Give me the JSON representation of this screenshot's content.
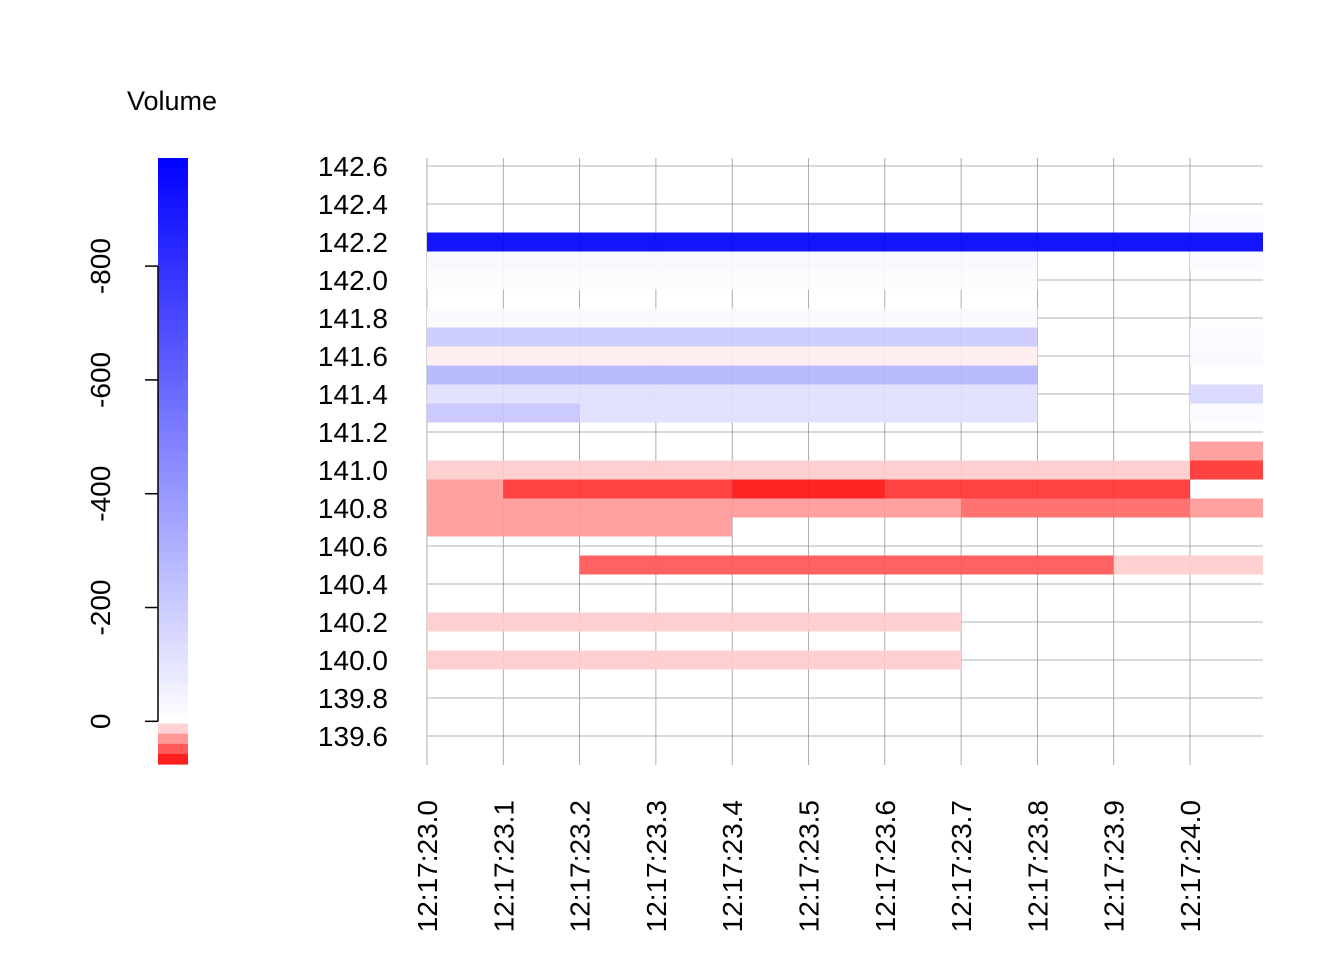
{
  "chart_data": [
    {
      "type": "heatmap",
      "title": "",
      "xlabel": "",
      "ylabel": "",
      "x_ticks": [
        "12:17:23.0",
        "12:17:23.1",
        "12:17:23.2",
        "12:17:23.3",
        "12:17:23.4",
        "12:17:23.5",
        "12:17:23.6",
        "12:17:23.7",
        "12:17:23.8",
        "12:17:23.9",
        "12:17:24.0"
      ],
      "x_range": [
        0.0,
        1.1
      ],
      "y_ticks": [
        "142.6",
        "142.4",
        "142.2",
        "142.0",
        "141.8",
        "141.6",
        "141.4",
        "141.2",
        "141.0",
        "140.8",
        "140.6",
        "140.4",
        "140.2",
        "140.0",
        "139.8",
        "139.6"
      ],
      "y_range": [
        139.6,
        142.6
      ],
      "grid": true,
      "price_step": 0.1,
      "cells": [
        {
          "t0": 0.0,
          "t1": 1.1,
          "price": 142.2,
          "volume": -990
        },
        {
          "t0": 0.0,
          "t1": 0.8,
          "price": 142.1,
          "volume": -30
        },
        {
          "t0": 0.0,
          "t1": 0.8,
          "price": 142.0,
          "volume": -10
        },
        {
          "t0": 1.0,
          "t1": 1.1,
          "price": 142.3,
          "volume": -20
        },
        {
          "t0": 1.0,
          "t1": 1.1,
          "price": 142.1,
          "volume": -20
        },
        {
          "t0": 0.0,
          "t1": 0.8,
          "price": 141.8,
          "volume": -20
        },
        {
          "t0": 0.0,
          "t1": 0.8,
          "price": 141.7,
          "volume": -200
        },
        {
          "t0": 0.0,
          "t1": 0.8,
          "price": 141.6,
          "volume": 5
        },
        {
          "t0": 1.0,
          "t1": 1.1,
          "price": 141.7,
          "volume": -20
        },
        {
          "t0": 1.0,
          "t1": 1.1,
          "price": 141.6,
          "volume": -20
        },
        {
          "t0": 0.0,
          "t1": 0.8,
          "price": 141.5,
          "volume": -290
        },
        {
          "t0": 0.0,
          "t1": 0.8,
          "price": 141.4,
          "volume": -120
        },
        {
          "t0": 0.0,
          "t1": 0.2,
          "price": 141.3,
          "volume": -220
        },
        {
          "t0": 0.2,
          "t1": 0.8,
          "price": 141.3,
          "volume": -120
        },
        {
          "t0": 1.0,
          "t1": 1.1,
          "price": 141.4,
          "volume": -150
        },
        {
          "t0": 1.0,
          "t1": 1.1,
          "price": 141.3,
          "volume": -20
        },
        {
          "t0": 1.0,
          "t1": 1.1,
          "price": 141.1,
          "volume": 30
        },
        {
          "t0": 0.0,
          "t1": 1.0,
          "price": 141.0,
          "volume": 15
        },
        {
          "t0": 1.0,
          "t1": 1.1,
          "price": 141.0,
          "volume": 60
        },
        {
          "t0": 0.0,
          "t1": 0.1,
          "price": 140.9,
          "volume": 30
        },
        {
          "t0": 0.1,
          "t1": 0.4,
          "price": 140.9,
          "volume": 60
        },
        {
          "t0": 0.4,
          "t1": 0.6,
          "price": 140.9,
          "volume": 70
        },
        {
          "t0": 0.6,
          "t1": 1.0,
          "price": 140.9,
          "volume": 60
        },
        {
          "t0": 0.0,
          "t1": 0.4,
          "price": 140.8,
          "volume": 30
        },
        {
          "t0": 0.4,
          "t1": 0.7,
          "price": 140.8,
          "volume": 30
        },
        {
          "t0": 0.7,
          "t1": 1.0,
          "price": 140.8,
          "volume": 45
        },
        {
          "t0": 1.0,
          "t1": 1.1,
          "price": 140.8,
          "volume": 30
        },
        {
          "t0": 0.0,
          "t1": 0.4,
          "price": 140.7,
          "volume": 30
        },
        {
          "t0": 0.2,
          "t1": 0.9,
          "price": 140.5,
          "volume": 50
        },
        {
          "t0": 0.9,
          "t1": 1.1,
          "price": 140.5,
          "volume": 15
        },
        {
          "t0": 0.0,
          "t1": 0.7,
          "price": 140.2,
          "volume": 15
        },
        {
          "t0": 0.0,
          "t1": 0.7,
          "price": 140.0,
          "volume": 15
        }
      ]
    },
    {
      "type": "heatmap",
      "title": "Volume",
      "ylabel": "",
      "y_ticks": [
        "-800",
        "-600",
        "-400",
        "-200",
        "0"
      ],
      "y_tick_values": [
        -800,
        -600,
        -400,
        -200,
        0
      ],
      "range": [
        -990,
        75
      ],
      "color_scale": {
        "negative": "#0000ff",
        "zero": "#ffffff",
        "positive": "#ff0000"
      }
    }
  ]
}
